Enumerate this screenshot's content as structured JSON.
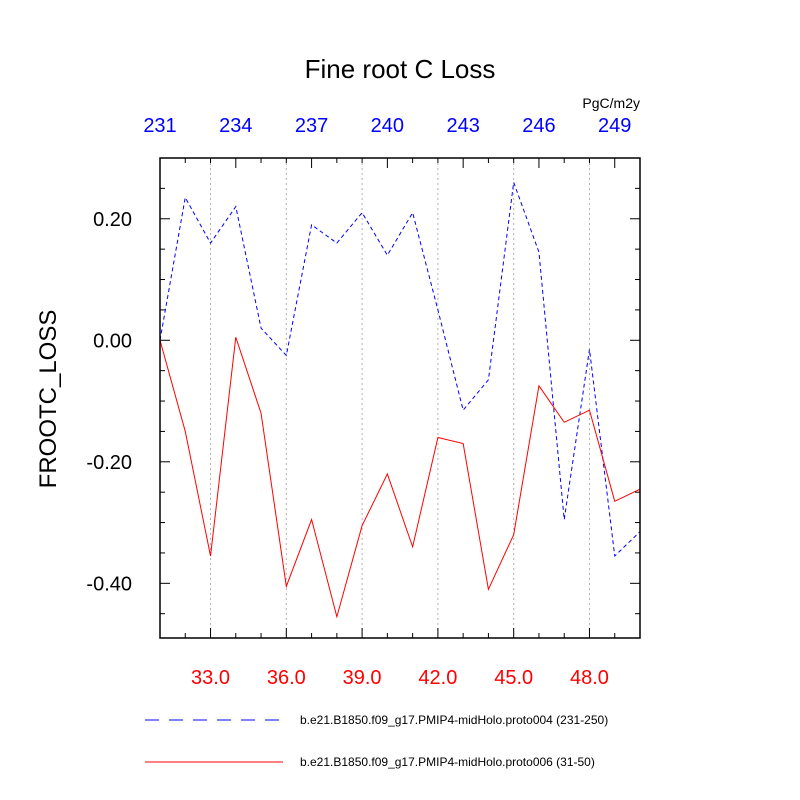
{
  "chart_data": {
    "type": "line",
    "title": "Fine root C Loss",
    "ylabel": "FROOTC_LOSS",
    "units": "PgC/m2y",
    "x_bottom": {
      "range": [
        31,
        50
      ],
      "ticks": [
        33,
        36,
        39,
        42,
        45,
        48
      ],
      "tick_labels": [
        "33.0",
        "36.0",
        "39.0",
        "42.0",
        "45.0",
        "48.0"
      ],
      "color": "#ff0000"
    },
    "x_top": {
      "range": [
        231,
        250
      ],
      "ticks": [
        231,
        234,
        237,
        240,
        243,
        246,
        249
      ],
      "tick_labels": [
        "231",
        "234",
        "237",
        "240",
        "243",
        "246",
        "249"
      ],
      "color": "#0000ff"
    },
    "y": {
      "range": [
        -0.49,
        0.3
      ],
      "ticks": [
        0.2,
        0.0,
        -0.2,
        -0.4
      ],
      "tick_labels": [
        "0.20",
        "0.00",
        "-0.20",
        "-0.40"
      ]
    },
    "grid": "vertical dotted at labeled bottom ticks",
    "legend_position": "bottom",
    "series": [
      {
        "name": "b.e21.B1850.f09_g17.PMIP4-midHolo.proto004 (231-250)",
        "axis": "top",
        "color": "#0000ff",
        "dash": "dashed",
        "x": [
          231,
          232,
          233,
          234,
          235,
          236,
          237,
          238,
          239,
          240,
          241,
          242,
          243,
          244,
          245,
          246,
          247,
          248,
          249,
          250
        ],
        "values": [
          0.0,
          0.235,
          0.16,
          0.22,
          0.02,
          -0.025,
          0.19,
          0.16,
          0.21,
          0.14,
          0.21,
          0.05,
          -0.115,
          -0.065,
          0.26,
          0.145,
          -0.295,
          -0.015,
          -0.355,
          -0.315
        ]
      },
      {
        "name": "b.e21.B1850.f09_g17.PMIP4-midHolo.proto006 (31-50)",
        "axis": "bottom",
        "color": "#ff0000",
        "dash": "solid",
        "x": [
          31,
          32,
          33,
          34,
          35,
          36,
          37,
          38,
          39,
          40,
          41,
          42,
          43,
          44,
          45,
          46,
          47,
          48,
          49,
          50
        ],
        "values": [
          0.0,
          -0.15,
          -0.355,
          0.005,
          -0.12,
          -0.405,
          -0.295,
          -0.455,
          -0.305,
          -0.22,
          -0.34,
          -0.16,
          -0.17,
          -0.41,
          -0.32,
          -0.075,
          -0.135,
          -0.115,
          -0.265,
          -0.245
        ]
      }
    ]
  }
}
